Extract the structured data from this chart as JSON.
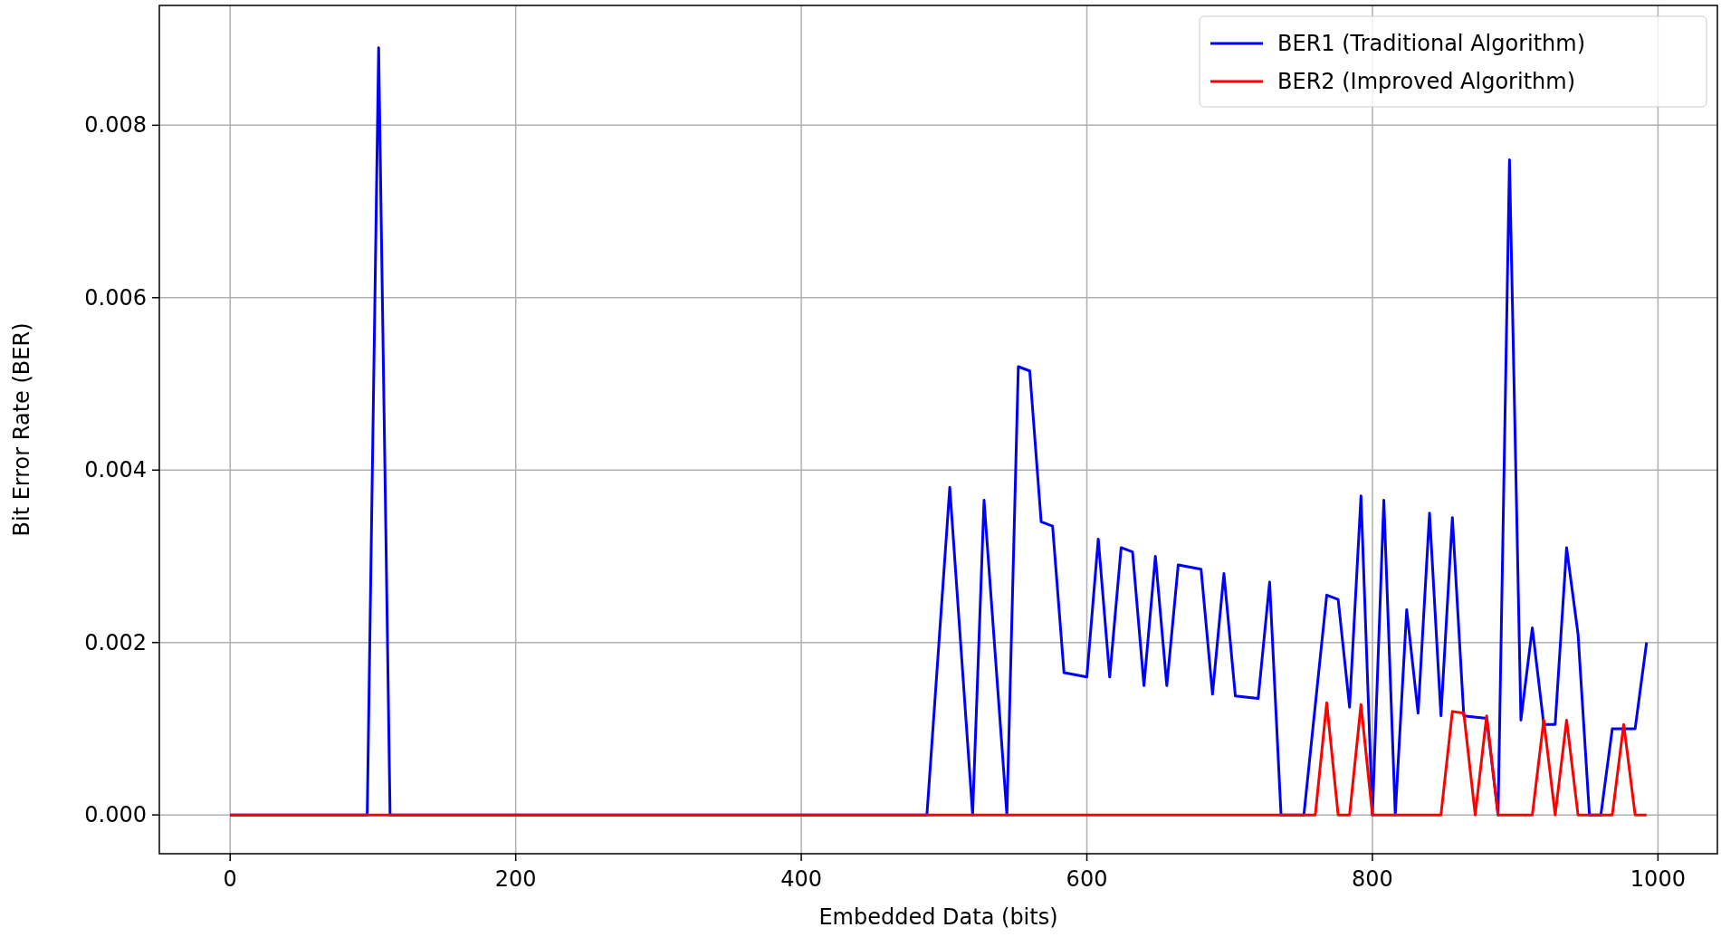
{
  "chart_data": {
    "type": "line",
    "xlabel": "Embedded Data (bits)",
    "ylabel": "Bit Error Rate (BER)",
    "xlim": [
      -49.6,
      1041.6
    ],
    "ylim": [
      -0.00045,
      0.00939
    ],
    "xticks": [
      0,
      200,
      400,
      600,
      800,
      1000
    ],
    "yticks": [
      {
        "value": 0,
        "label": "0.000"
      },
      {
        "value": 0.002,
        "label": "0.002"
      },
      {
        "value": 0.004,
        "label": "0.004"
      },
      {
        "value": 0.006,
        "label": "0.006"
      },
      {
        "value": 0.008,
        "label": "0.008"
      }
    ],
    "grid": true,
    "legend": "top right",
    "line_style": "solid",
    "marker": "none",
    "series": [
      {
        "name": "BER1 (Traditional Algorithm)",
        "color": "#0000ff",
        "x": [
          0,
          96,
          104,
          112,
          488,
          504,
          520,
          528,
          544,
          552,
          560,
          568,
          576,
          584,
          600,
          608,
          616,
          624,
          632,
          640,
          648,
          656,
          664,
          680,
          688,
          696,
          704,
          720,
          728,
          736,
          752,
          768,
          776,
          784,
          792,
          800,
          808,
          816,
          824,
          832,
          840,
          848,
          856,
          864,
          880,
          888,
          896,
          904,
          912,
          920,
          928,
          936,
          944,
          952,
          960,
          968,
          984,
          992
        ],
        "values": [
          0,
          0,
          0.0089,
          0,
          0,
          0.0038,
          0,
          0.00365,
          0,
          0.0052,
          0.00515,
          0.0034,
          0.00335,
          0.00165,
          0.0016,
          0.0032,
          0.0016,
          0.0031,
          0.00305,
          0.0015,
          0.003,
          0.0015,
          0.0029,
          0.00285,
          0.0014,
          0.0028,
          0.00138,
          0.00135,
          0.0027,
          0,
          0,
          0.00255,
          0.0025,
          0.00125,
          0.0037,
          0,
          0.00365,
          0,
          0.00238,
          0.00118,
          0.0035,
          0.00115,
          0.00345,
          0.00115,
          0.00112,
          0,
          0.0076,
          0.0011,
          0.00217,
          0.00105,
          0.00105,
          0.0031,
          0.0021,
          0,
          0,
          0.001,
          0.001,
          0.002
        ]
      },
      {
        "name": "BER2 (Improved Algorithm)",
        "color": "#ff0000",
        "x": [
          0,
          760,
          768,
          776,
          784,
          792,
          800,
          848,
          856,
          864,
          872,
          880,
          888,
          912,
          920,
          928,
          936,
          944,
          968,
          976,
          984,
          992
        ],
        "values": [
          0,
          0,
          0.0013,
          0,
          0,
          0.00128,
          0,
          0,
          0.0012,
          0.00118,
          0,
          0.00115,
          0,
          0,
          0.0011,
          0,
          0.0011,
          0,
          0,
          0.00105,
          0,
          0
        ]
      }
    ]
  }
}
